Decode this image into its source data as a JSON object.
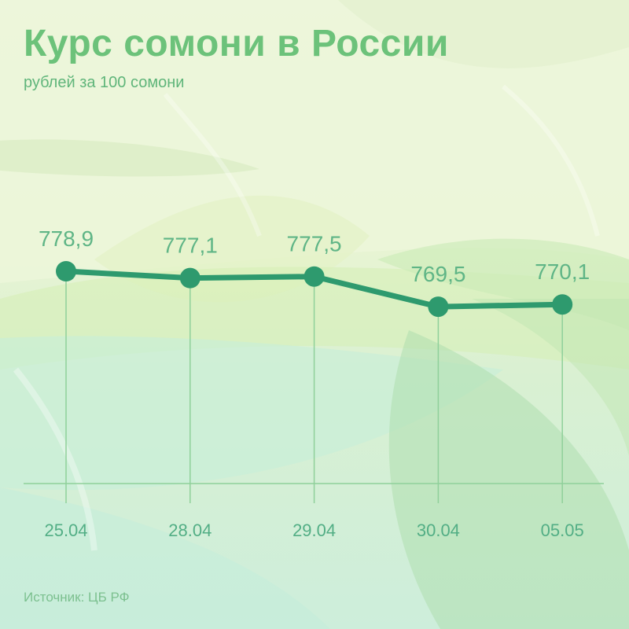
{
  "title": "Курс сомони в России",
  "subtitle": "рублей за 100 сомони",
  "source": "Источник: ЦБ РФ",
  "colors": {
    "line": "#2e9a6e",
    "point": "#2e9a6e",
    "guide": "#8fd09a",
    "title": "#6cc27a",
    "value_label": "#5fb586"
  },
  "chart_data": {
    "type": "line",
    "title": "Курс сомони в России",
    "subtitle": "рублей за 100 сомони",
    "xlabel": "",
    "ylabel": "",
    "categories": [
      "25.04",
      "28.04",
      "29.04",
      "30.04",
      "05.05"
    ],
    "values": [
      778.9,
      777.1,
      777.5,
      769.5,
      770.1
    ],
    "value_labels": [
      "778,9",
      "777,1",
      "777,5",
      "769,5",
      "770,1"
    ],
    "grid": false,
    "legend": "none"
  }
}
